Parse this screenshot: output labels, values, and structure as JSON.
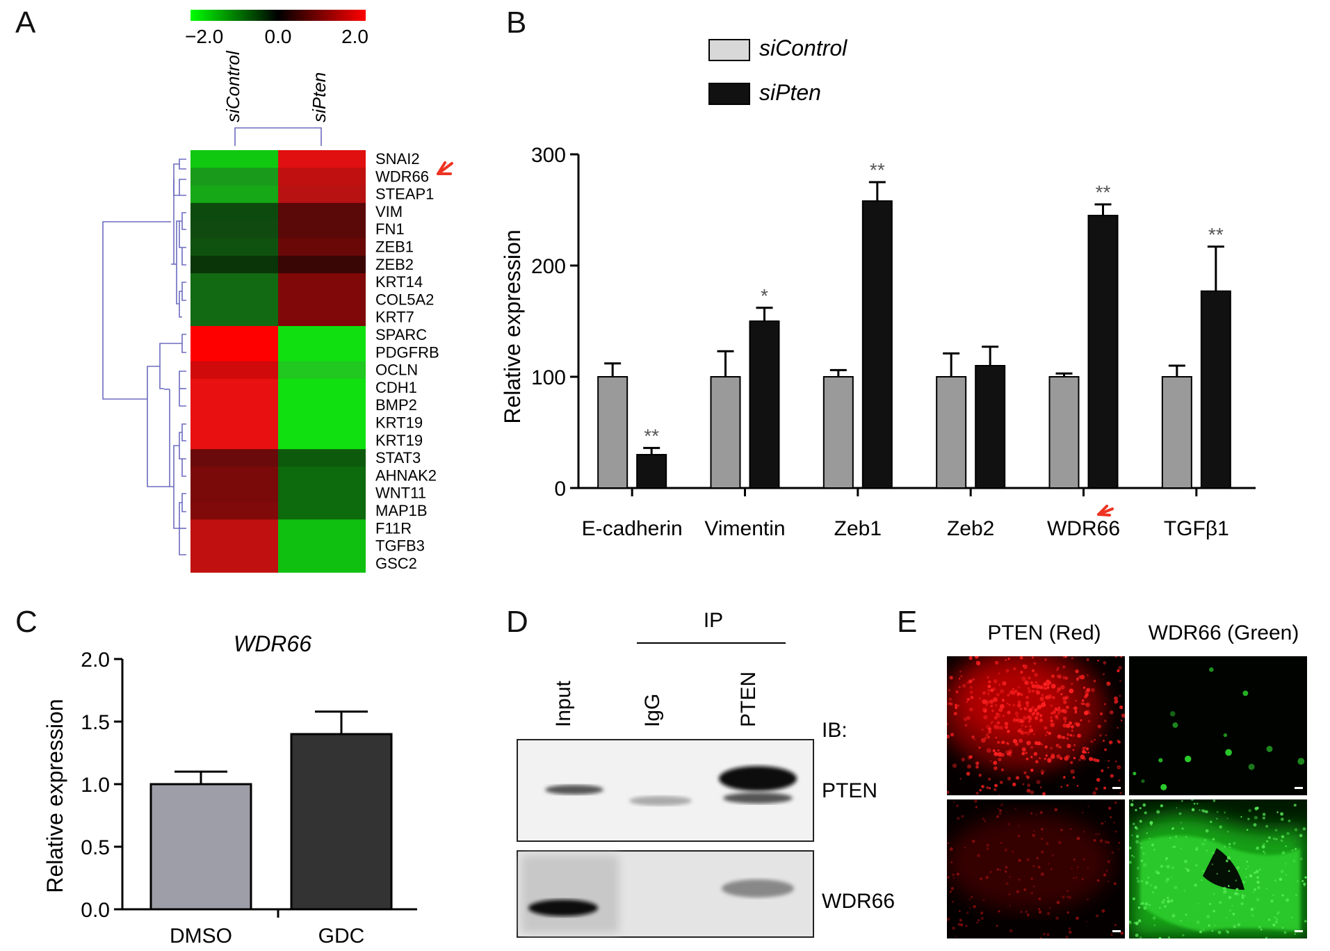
{
  "panels": {
    "a": "A",
    "b": "B",
    "c": "C",
    "d": "D",
    "e": "E"
  },
  "heatmap": {
    "scale_labels": [
      "−2.0",
      "0.0",
      "2.0"
    ],
    "columns": [
      "siControl",
      "siPten"
    ],
    "genes": [
      "SNAI2",
      "WDR66",
      "STEAP1",
      "VIM",
      "FN1",
      "ZEB1",
      "ZEB2",
      "KRT14",
      "COL5A2",
      "KRT7",
      "SPARC",
      "PDGFRB",
      "OCLN",
      "CDH1",
      "BMP2",
      "KRT19",
      "KRT19",
      "STAT3",
      "AHNAK2",
      "WNT11",
      "MAP1B",
      "F11R",
      "TGFB3",
      "GSC2"
    ],
    "colors": {
      "siControl": [
        "#10c810",
        "#1a9a1a",
        "#16a816",
        "#0d4a0d",
        "#104a10",
        "#0f520f",
        "#093509",
        "#126a12",
        "#126a12",
        "#126a12",
        "#ff0000",
        "#ff0000",
        "#d00a0a",
        "#e81010",
        "#e81010",
        "#e81010",
        "#e81010",
        "#6a0a0a",
        "#7a0a0a",
        "#7a0a0a",
        "#800a0a",
        "#c01010",
        "#c01010",
        "#c01010"
      ],
      "siPten": [
        "#e01010",
        "#c01010",
        "#b81212",
        "#5a0808",
        "#5a0808",
        "#6a0808",
        "#3a0505",
        "#800808",
        "#800808",
        "#800808",
        "#10e010",
        "#10e010",
        "#20c820",
        "#10e010",
        "#10e010",
        "#10e010",
        "#10e010",
        "#0d5a0d",
        "#0d6a0d",
        "#0d6a0d",
        "#0d6a0d",
        "#10c010",
        "#10c010",
        "#10c010"
      ]
    }
  },
  "chart_data": [
    {
      "type": "bar",
      "ylabel": "Relative expression",
      "ylim": [
        0,
        300
      ],
      "yticks": [
        "0",
        "100",
        "200",
        "300"
      ],
      "categories": [
        "E-cadherin",
        "Vimentin",
        "Zeb1",
        "Zeb2",
        "WDR66",
        "TGFβ1"
      ],
      "series": [
        {
          "name": "siControl",
          "color": "#9a9a9a",
          "values": [
            100,
            100,
            100,
            100,
            100,
            100
          ],
          "errors": [
            12,
            23,
            6,
            21,
            3,
            10
          ]
        },
        {
          "name": "siPten",
          "color": "#111111",
          "values": [
            30,
            150,
            258,
            110,
            245,
            177
          ],
          "errors": [
            6,
            12,
            17,
            17,
            10,
            40
          ]
        }
      ],
      "significance": [
        "**",
        "*",
        "**",
        "",
        "**",
        "**"
      ]
    },
    {
      "type": "bar",
      "title": "WDR66",
      "ylabel": "Relative expression",
      "ylim": [
        0,
        2.0
      ],
      "yticks": [
        "0.0",
        "0.5",
        "1.0",
        "1.5",
        "2.0"
      ],
      "categories": [
        "DMSO",
        "GDC"
      ],
      "values": [
        1.0,
        1.4
      ],
      "errors": [
        0.1,
        0.18
      ],
      "colors": [
        "#9e9ea8",
        "#333333"
      ]
    }
  ],
  "blot": {
    "ip_label": "IP",
    "lanes": [
      "Input",
      "IgG",
      "PTEN"
    ],
    "ib_label": "IB:",
    "bands": [
      "PTEN",
      "WDR66"
    ]
  },
  "immuno": {
    "headers": [
      "PTEN (Red)",
      "WDR66 (Green)"
    ]
  }
}
